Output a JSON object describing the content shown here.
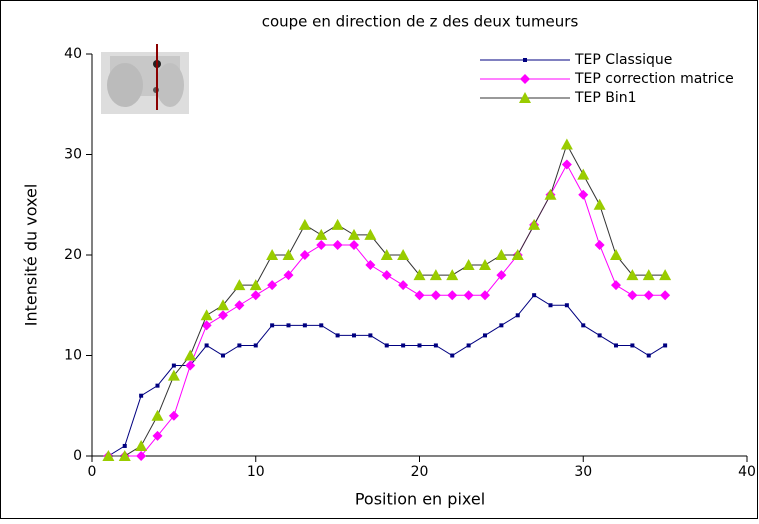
{
  "chart_data": {
    "type": "line",
    "title": "coupe en direction de z des deux tumeurs",
    "x_label": "Position en pixel",
    "y_label": "Intensité du voxel",
    "x": [
      1,
      2,
      3,
      4,
      5,
      6,
      7,
      8,
      9,
      10,
      11,
      12,
      13,
      14,
      15,
      16,
      17,
      18,
      19,
      20,
      21,
      22,
      23,
      24,
      25,
      26,
      27,
      28,
      29,
      30,
      31,
      32,
      33,
      34,
      35
    ],
    "series": [
      {
        "name": "TEP Classique",
        "color": "#000080",
        "marker": "square",
        "marker_color": "#000080",
        "values": [
          0,
          1,
          6,
          7,
          9,
          9,
          11,
          10,
          11,
          11,
          13,
          13,
          13,
          13,
          12,
          12,
          12,
          11,
          11,
          11,
          11,
          10,
          11,
          12,
          13,
          14,
          16,
          15,
          15,
          13,
          12,
          11,
          11,
          10,
          11
        ]
      },
      {
        "name": "TEP correction matrice",
        "color": "#ff00ff",
        "marker": "diamond",
        "marker_color": "#ff00ff",
        "values": [
          0,
          0,
          0,
          2,
          4,
          9,
          13,
          14,
          15,
          16,
          17,
          18,
          20,
          21,
          21,
          21,
          19,
          18,
          17,
          16,
          16,
          16,
          16,
          16,
          18,
          20,
          23,
          26,
          29,
          26,
          21,
          17,
          16,
          16,
          16
        ]
      },
      {
        "name": "TEP Bin1",
        "color": "#333333",
        "marker": "triangle",
        "marker_color": "#99cc00",
        "values": [
          0,
          0,
          1,
          4,
          8,
          10,
          14,
          15,
          17,
          17,
          20,
          20,
          23,
          22,
          23,
          22,
          22,
          20,
          20,
          18,
          18,
          18,
          19,
          19,
          20,
          20,
          23,
          26,
          31,
          28,
          25,
          20,
          18,
          18,
          18
        ]
      }
    ],
    "xlim": [
      0,
      40
    ],
    "xticks": [
      0,
      10,
      20,
      30,
      40
    ],
    "ylim": [
      0,
      40
    ],
    "yticks": [
      0,
      10,
      20,
      30,
      40
    ]
  }
}
